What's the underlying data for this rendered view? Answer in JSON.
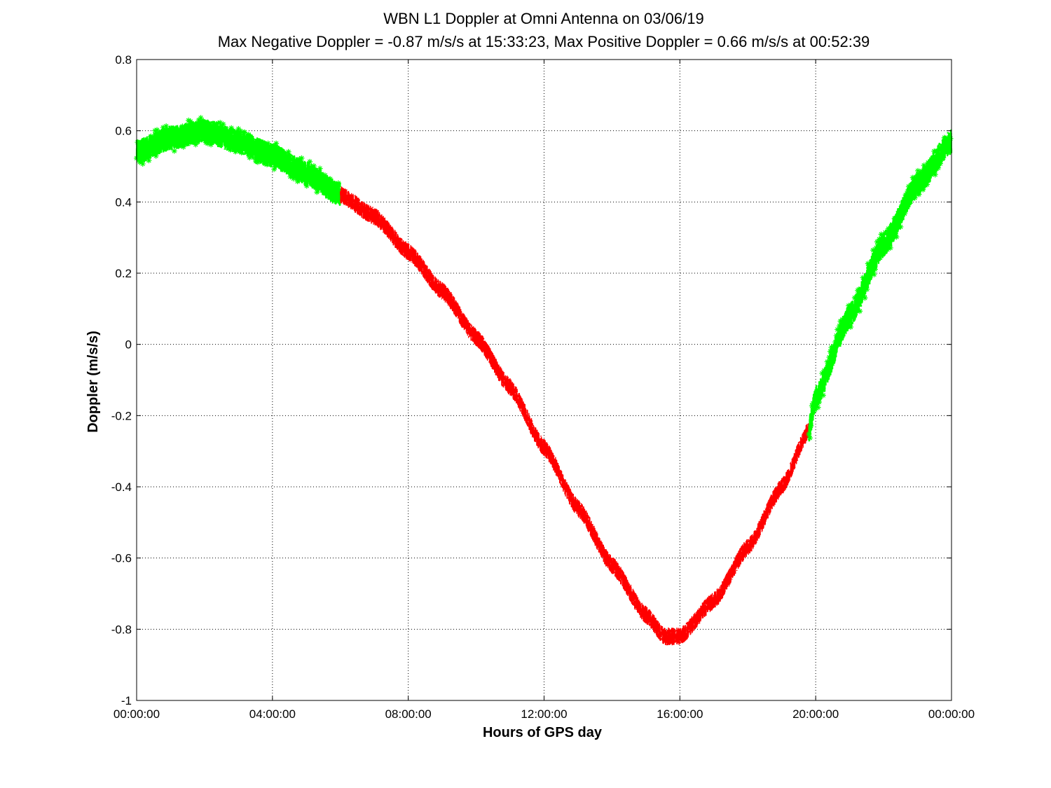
{
  "chart_data": {
    "type": "line",
    "title": "WBN  L1 Doppler at Omni Antenna on 03/06/19",
    "subtitle": "Max Negative Doppler = -0.87 m/s/s  at 15:33:23,   Max Positive Doppler = 0.66 m/s/s  at 00:52:39",
    "xlabel": "Hours of GPS day",
    "ylabel": "Doppler (m/s/s)",
    "xlim": [
      0,
      24
    ],
    "ylim": [
      -1,
      0.8
    ],
    "x_unit": "hours",
    "xticks": [
      {
        "value": 0,
        "label": "00:00:00"
      },
      {
        "value": 4,
        "label": "04:00:00"
      },
      {
        "value": 8,
        "label": "08:00:00"
      },
      {
        "value": 12,
        "label": "12:00:00"
      },
      {
        "value": 16,
        "label": "16:00:00"
      },
      {
        "value": 20,
        "label": "20:00:00"
      },
      {
        "value": 24,
        "label": "00:00:00"
      }
    ],
    "yticks": [
      {
        "value": 0.8,
        "label": "0.8"
      },
      {
        "value": 0.6,
        "label": "0.6"
      },
      {
        "value": 0.4,
        "label": "0.4"
      },
      {
        "value": 0.2,
        "label": "0.2"
      },
      {
        "value": 0,
        "label": "0"
      },
      {
        "value": -0.2,
        "label": "-0.2"
      },
      {
        "value": -0.4,
        "label": "-0.4"
      },
      {
        "value": -0.6,
        "label": "-0.6"
      },
      {
        "value": -0.8,
        "label": "-0.8"
      },
      {
        "value": -1,
        "label": "-1"
      }
    ],
    "grid": true,
    "series": [
      {
        "color": "#00ff00",
        "marker": "asterisk",
        "noise_band": 0.035,
        "points": [
          [
            0,
            0.54
          ],
          [
            1,
            0.58
          ],
          [
            2,
            0.6
          ],
          [
            3,
            0.57
          ],
          [
            4,
            0.53
          ],
          [
            5,
            0.48
          ],
          [
            6,
            0.42
          ]
        ]
      },
      {
        "color": "#ff0000",
        "marker": "line",
        "noise_band": 0.025,
        "points": [
          [
            6,
            0.42
          ],
          [
            7,
            0.36
          ],
          [
            8,
            0.26
          ],
          [
            9,
            0.15
          ],
          [
            10,
            0.02
          ],
          [
            11,
            -0.12
          ],
          [
            12,
            -0.29
          ],
          [
            13,
            -0.46
          ],
          [
            14,
            -0.62
          ],
          [
            15,
            -0.76
          ],
          [
            15.55,
            -0.82
          ],
          [
            16,
            -0.82
          ],
          [
            17,
            -0.72
          ],
          [
            18,
            -0.57
          ],
          [
            19,
            -0.4
          ],
          [
            19.8,
            -0.24
          ]
        ]
      },
      {
        "color": "#00ff00",
        "marker": "asterisk",
        "noise_band": 0.035,
        "points": [
          [
            19.8,
            -0.24
          ],
          [
            20,
            -0.15
          ],
          [
            21,
            0.08
          ],
          [
            22,
            0.28
          ],
          [
            23,
            0.45
          ],
          [
            24,
            0.57
          ]
        ]
      }
    ]
  }
}
